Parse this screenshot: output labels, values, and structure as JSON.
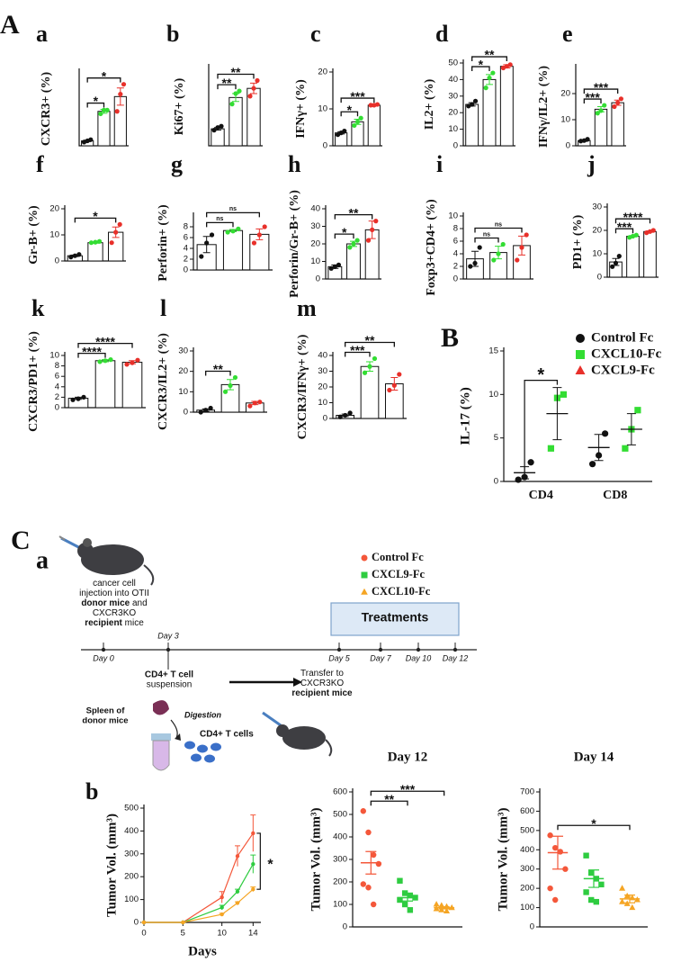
{
  "section_labels": {
    "A": "A",
    "C": "C"
  },
  "chart_data": [
    {
      "type": "bar",
      "panel": "a",
      "ylabel": "CXCR3+ (%)",
      "categories": [
        null,
        null,
        null
      ],
      "ylim": [
        0,
        30
      ],
      "yticks": [],
      "values": [
        2,
        14,
        20
      ],
      "errors": [
        0.3,
        0.8,
        3.5
      ],
      "points": [
        [
          1.5,
          2,
          2.5
        ],
        [
          13,
          14.5,
          14.5
        ],
        [
          14,
          21,
          25
        ]
      ],
      "point_colors": [
        "#111111",
        "#33dd33",
        "#e8302a"
      ],
      "brackets": [
        {
          "label": "*",
          "bars": [
            0,
            1
          ]
        },
        {
          "label": "*",
          "bars": [
            0,
            2
          ]
        }
      ]
    },
    {
      "type": "bar",
      "panel": "b",
      "ylabel": "Ki67+ (%)",
      "categories": [
        null,
        null,
        null
      ],
      "ylim": [
        0,
        60
      ],
      "yticks": [],
      "values": [
        13,
        37,
        44
      ],
      "errors": [
        1,
        3,
        4
      ],
      "points": [
        [
          12,
          14,
          15
        ],
        [
          32,
          40,
          42
        ],
        [
          38,
          44,
          50
        ]
      ],
      "point_colors": [
        "#111111",
        "#33dd33",
        "#e8302a"
      ],
      "brackets": [
        {
          "label": "**",
          "bars": [
            0,
            1
          ]
        },
        {
          "label": "**",
          "bars": [
            0,
            2
          ]
        }
      ]
    },
    {
      "type": "bar",
      "panel": "c",
      "ylabel": "IFNγ+ (%)",
      "categories": [
        null,
        null,
        null
      ],
      "ylim": [
        0,
        20
      ],
      "yticks": [
        0,
        10,
        20
      ],
      "values": [
        3.5,
        6.5,
        11
      ],
      "errors": [
        0.3,
        0.7,
        0.2
      ],
      "points": [
        [
          3,
          3.5,
          4
        ],
        [
          5.5,
          6.5,
          7.5
        ],
        [
          11,
          11,
          11.2
        ]
      ],
      "point_colors": [
        "#111111",
        "#33dd33",
        "#e8302a"
      ],
      "brackets": [
        {
          "label": "*",
          "bars": [
            0,
            1
          ]
        },
        {
          "label": "***",
          "bars": [
            0,
            2
          ]
        }
      ]
    },
    {
      "type": "bar",
      "panel": "d",
      "ylabel": "IL2+ (%)",
      "categories": [
        null,
        null,
        null
      ],
      "ylim": [
        0,
        50
      ],
      "yticks": [
        0,
        10,
        20,
        30,
        40,
        50
      ],
      "values": [
        25,
        40,
        48
      ],
      "errors": [
        1,
        3,
        1
      ],
      "points": [
        [
          24,
          25,
          27
        ],
        [
          35,
          41,
          44
        ],
        [
          47,
          48,
          49
        ]
      ],
      "point_colors": [
        "#111111",
        "#33dd33",
        "#e8302a"
      ],
      "brackets": [
        {
          "label": "*",
          "bars": [
            0,
            1
          ]
        },
        {
          "label": "**",
          "bars": [
            0,
            2
          ]
        }
      ]
    },
    {
      "type": "bar",
      "panel": "e",
      "ylabel": "IFNγ/IL2+ (%)",
      "categories": [
        null,
        null,
        null
      ],
      "ylim": [
        0,
        30
      ],
      "yticks": [
        0,
        10,
        20
      ],
      "values": [
        2,
        14,
        16.5
      ],
      "errors": [
        0.3,
        1,
        1
      ],
      "points": [
        [
          1.8,
          2,
          2.5
        ],
        [
          12.5,
          13.5,
          15.5
        ],
        [
          15,
          16.5,
          18
        ]
      ],
      "point_colors": [
        "#111111",
        "#33dd33",
        "#e8302a"
      ],
      "brackets": [
        {
          "label": "***",
          "bars": [
            0,
            1
          ]
        },
        {
          "label": "***",
          "bars": [
            0,
            2
          ]
        }
      ]
    },
    {
      "type": "bar",
      "panel": "f",
      "ylabel": "Gr-B+ (%)",
      "categories": [
        null,
        null,
        null
      ],
      "ylim": [
        0,
        20
      ],
      "yticks": [
        0,
        10,
        20
      ],
      "values": [
        2,
        7,
        11
      ],
      "errors": [
        0.3,
        0.2,
        2
      ],
      "points": [
        [
          1.5,
          2,
          2.5
        ],
        [
          7,
          7.2,
          7.5
        ],
        [
          7,
          11,
          14
        ]
      ],
      "point_colors": [
        "#111111",
        "#33dd33",
        "#e8302a"
      ],
      "brackets": [
        {
          "label": "*",
          "bars": [
            0,
            2
          ]
        }
      ]
    },
    {
      "type": "bar",
      "panel": "g",
      "ylabel": "Perforin+ (%)",
      "categories": [
        null,
        null,
        null
      ],
      "ylim": [
        0,
        10
      ],
      "yticks": [
        0,
        2,
        4,
        6,
        8
      ],
      "values": [
        4.7,
        7.3,
        6.6
      ],
      "errors": [
        1.5,
        0.2,
        1
      ],
      "points": [
        [
          2.5,
          5,
          6.5
        ],
        [
          7,
          7.2,
          7.6
        ],
        [
          5,
          6.5,
          8
        ]
      ],
      "point_colors": [
        "#111111",
        "#33dd33",
        "#e8302a"
      ],
      "brackets": [
        {
          "label": "ns",
          "bars": [
            0,
            1
          ]
        },
        {
          "label": "ns",
          "bars": [
            0,
            2
          ]
        }
      ]
    },
    {
      "type": "bar",
      "panel": "h",
      "ylabel": "Perforin/Gr-B+ (%)",
      "categories": [
        null,
        null,
        null
      ],
      "ylim": [
        0,
        40
      ],
      "yticks": [
        0,
        10,
        20,
        30,
        40
      ],
      "values": [
        7,
        20,
        28
      ],
      "errors": [
        1,
        1.5,
        5
      ],
      "points": [
        [
          6,
          7,
          8
        ],
        [
          18,
          20,
          22
        ],
        [
          22,
          28,
          33
        ]
      ],
      "point_colors": [
        "#111111",
        "#33dd33",
        "#e8302a"
      ],
      "brackets": [
        {
          "label": "*",
          "bars": [
            0,
            1
          ]
        },
        {
          "label": "**",
          "bars": [
            0,
            2
          ]
        }
      ]
    },
    {
      "type": "bar",
      "panel": "i",
      "ylabel": "Foxp3+CD4+ (%)",
      "categories": [
        null,
        null,
        null
      ],
      "ylim": [
        0,
        10
      ],
      "yticks": [
        0,
        2,
        4,
        6,
        8,
        10
      ],
      "values": [
        3.2,
        4.2,
        5.3
      ],
      "errors": [
        1.2,
        1,
        1.5
      ],
      "points": [
        [
          2,
          2.5,
          5
        ],
        [
          3,
          4,
          5.5
        ],
        [
          3,
          5,
          7
        ]
      ],
      "point_colors": [
        "#111111",
        "#33dd33",
        "#e8302a"
      ],
      "brackets": [
        {
          "label": "ns",
          "bars": [
            0,
            1
          ]
        },
        {
          "label": "ns",
          "bars": [
            0,
            2
          ]
        }
      ]
    },
    {
      "type": "bar",
      "panel": "j",
      "ylabel": "PD1+ (%)",
      "categories": [
        null,
        null,
        null
      ],
      "ylim": [
        0,
        30
      ],
      "yticks": [
        0,
        10,
        20,
        30
      ],
      "values": [
        6.5,
        17.5,
        19.5
      ],
      "errors": [
        1.5,
        0.3,
        0.3
      ],
      "points": [
        [
          4.5,
          6,
          9
        ],
        [
          17,
          17.5,
          18
        ],
        [
          19,
          19.5,
          20
        ]
      ],
      "point_colors": [
        "#111111",
        "#33dd33",
        "#e8302a"
      ],
      "brackets": [
        {
          "label": "***",
          "bars": [
            0,
            1
          ]
        },
        {
          "label": "****",
          "bars": [
            0,
            2
          ]
        }
      ]
    },
    {
      "type": "bar",
      "panel": "k",
      "ylabel": "CXCR3/PD1+ (%)",
      "categories": [
        null,
        null,
        null
      ],
      "ylim": [
        0,
        10
      ],
      "yticks": [
        0,
        2,
        4,
        6,
        8,
        10
      ],
      "values": [
        1.8,
        9,
        8.7
      ],
      "errors": [
        0.2,
        0.2,
        0.3
      ],
      "points": [
        [
          1.5,
          1.7,
          2
        ],
        [
          8.8,
          9,
          9.2
        ],
        [
          8.3,
          8.6,
          9.1
        ]
      ],
      "point_colors": [
        "#111111",
        "#33dd33",
        "#e8302a"
      ],
      "brackets": [
        {
          "label": "****",
          "bars": [
            0,
            1
          ]
        },
        {
          "label": "****",
          "bars": [
            0,
            2
          ]
        }
      ]
    },
    {
      "type": "bar",
      "panel": "l",
      "ylabel": "CXCR3/IL2+ (%)",
      "categories": [
        null,
        null,
        null
      ],
      "ylim": [
        0,
        30
      ],
      "yticks": [
        0,
        10,
        20,
        30
      ],
      "values": [
        1,
        13.5,
        4.5
      ],
      "errors": [
        0.6,
        2.5,
        0.8
      ],
      "points": [
        [
          0,
          1,
          2
        ],
        [
          10,
          13,
          17
        ],
        [
          3,
          4.5,
          5
        ]
      ],
      "point_colors": [
        "#111111",
        "#33dd33",
        "#e8302a"
      ],
      "brackets": [
        {
          "label": "**",
          "bars": [
            0,
            1
          ]
        }
      ]
    },
    {
      "type": "bar",
      "panel": "m",
      "ylabel": "CXCR3/IFNγ+ (%)",
      "categories": [
        null,
        null,
        null
      ],
      "ylim": [
        0,
        40
      ],
      "yticks": [
        0,
        10,
        20,
        30,
        40
      ],
      "values": [
        2,
        33,
        22
      ],
      "errors": [
        0.8,
        3,
        4
      ],
      "points": [
        [
          1,
          2,
          3.5
        ],
        [
          29,
          33,
          38
        ],
        [
          18,
          21,
          28
        ]
      ],
      "point_colors": [
        "#111111",
        "#33dd33",
        "#e8302a"
      ],
      "brackets": [
        {
          "label": "***",
          "bars": [
            0,
            1
          ]
        },
        {
          "label": "**",
          "bars": [
            0,
            2
          ]
        }
      ]
    },
    {
      "type": "grouped_strip",
      "panel": "B",
      "ylabel": "IL-17 (%)",
      "categories": [
        "CD4",
        "CD8"
      ],
      "ylim": [
        0,
        15
      ],
      "yticks": [
        0,
        5,
        10,
        15
      ],
      "legend": "top-right",
      "series": [
        {
          "name": "Control Fc",
          "color": "#111111",
          "marker": "circle",
          "values": [
            1,
            3.9
          ],
          "errors": [
            0.7,
            1.5
          ],
          "points": [
            [
              0.2,
              0.5,
              2.2
            ],
            [
              2,
              3,
              5.5
            ]
          ]
        },
        {
          "name": "CXCL10-Fc",
          "color": "#33dd33",
          "marker": "square",
          "values": [
            7.8,
            6
          ],
          "errors": [
            3,
            1.8
          ],
          "points": [
            [
              3.8,
              9.6,
              10
            ],
            [
              3.8,
              6,
              8.2
            ]
          ]
        },
        {
          "name": "CXCL9-Fc",
          "color": "#e8302a",
          "marker": "triangle",
          "values": [
            null,
            null
          ],
          "errors": [
            null,
            null
          ],
          "points": [
            [],
            []
          ]
        }
      ],
      "brackets": [
        {
          "label": "*",
          "category": 0
        }
      ]
    },
    {
      "type": "line",
      "panel": "b",
      "ylabel": "Tumor Vol. (mm³)",
      "xlabel": "Days",
      "x": [
        0,
        5,
        10,
        12,
        14
      ],
      "xlim": [
        0,
        15
      ],
      "xticks": [
        0,
        5,
        10,
        14
      ],
      "ylim": [
        0,
        500
      ],
      "yticks": [
        0,
        100,
        200,
        300,
        400,
        500
      ],
      "annotation": "*",
      "series": [
        {
          "color": "#f4573a",
          "values": [
            0,
            0,
            110,
            290,
            390
          ],
          "errors": [
            0,
            0,
            25,
            45,
            80
          ]
        },
        {
          "color": "#2ecc40",
          "values": [
            0,
            0,
            65,
            135,
            255
          ],
          "errors": [
            0,
            0,
            10,
            10,
            40
          ]
        },
        {
          "color": "#f5a524",
          "values": [
            0,
            0,
            35,
            85,
            145
          ],
          "errors": [
            0,
            0,
            5,
            5,
            10
          ]
        }
      ]
    },
    {
      "type": "strip",
      "title": "Day 12",
      "ylabel": "Tumor Vol. (mm³)",
      "categories": [
        null,
        null,
        null
      ],
      "ylim": [
        0,
        600
      ],
      "yticks": [
        0,
        100,
        200,
        300,
        400,
        500,
        600
      ],
      "colors": [
        "#f4573a",
        "#2ecc40",
        "#f5a524"
      ],
      "markers": [
        "circle",
        "square",
        "triangle"
      ],
      "values": [
        285,
        130,
        85
      ],
      "errors": [
        50,
        15,
        5
      ],
      "points": [
        [
          515,
          420,
          320,
          280,
          190,
          175,
          100
        ],
        [
          205,
          150,
          140,
          130,
          120,
          100,
          75
        ],
        [
          100,
          95,
          90,
          85,
          80,
          75,
          70
        ]
      ],
      "brackets": [
        {
          "label": "**",
          "bars": [
            0,
            1
          ]
        },
        {
          "label": "***",
          "bars": [
            0,
            2
          ]
        }
      ]
    },
    {
      "type": "strip",
      "title": "Day 14",
      "ylabel": "Tumor Vol. (mm³)",
      "categories": [
        null,
        null,
        null
      ],
      "ylim": [
        0,
        700
      ],
      "yticks": [
        0,
        100,
        200,
        300,
        400,
        500,
        600,
        700
      ],
      "colors": [
        "#f4573a",
        "#2ecc40",
        "#f5a524"
      ],
      "markers": [
        "circle",
        "square",
        "triangle"
      ],
      "values": [
        385,
        250,
        145
      ],
      "errors": [
        85,
        45,
        20
      ],
      "points": [
        [
          475,
          410,
          390,
          300,
          200,
          140
        ],
        [
          370,
          280,
          250,
          220,
          180,
          140,
          130
        ],
        [
          200,
          160,
          150,
          140,
          130,
          120,
          100
        ]
      ],
      "brackets": [
        {
          "label": "*",
          "bars": [
            0,
            2
          ]
        }
      ]
    }
  ],
  "schematic": {
    "panel": "a",
    "injection_text": [
      [
        {
          "t": "cancer cell"
        }
      ],
      [
        {
          "t": "injection into OTII"
        }
      ],
      [
        {
          "t": "donor mice",
          "b": true
        },
        {
          "t": " and"
        }
      ],
      [
        {
          "t": "CXCR3KO"
        }
      ],
      [
        {
          "t": "recipient",
          "b": true
        },
        {
          "t": " mice"
        }
      ]
    ],
    "legend": [
      {
        "label": "Control Fc",
        "color": "#f4573a",
        "marker": "circle"
      },
      {
        "label": "CXCL9-Fc",
        "color": "#2ecc40",
        "marker": "square"
      },
      {
        "label": "CXCL10-Fc",
        "color": "#f5a524",
        "marker": "triangle"
      }
    ],
    "treatments": "Treatments",
    "timeline": [
      "Day 0",
      "Day 3",
      "Day 5",
      "Day 7",
      "Day 10",
      "Day 12"
    ],
    "suspension": [
      "CD4+ T cell",
      "suspension"
    ],
    "transfer": [
      [
        {
          "t": "Transfer to"
        }
      ],
      [
        {
          "t": "CXCR3KO"
        }
      ],
      [
        {
          "t": "recipient mice",
          "b": true
        }
      ]
    ],
    "spleen": [
      "Spleen of",
      "donor mice"
    ],
    "digestion": "Digestion",
    "cells": "CD4+ T cells"
  }
}
